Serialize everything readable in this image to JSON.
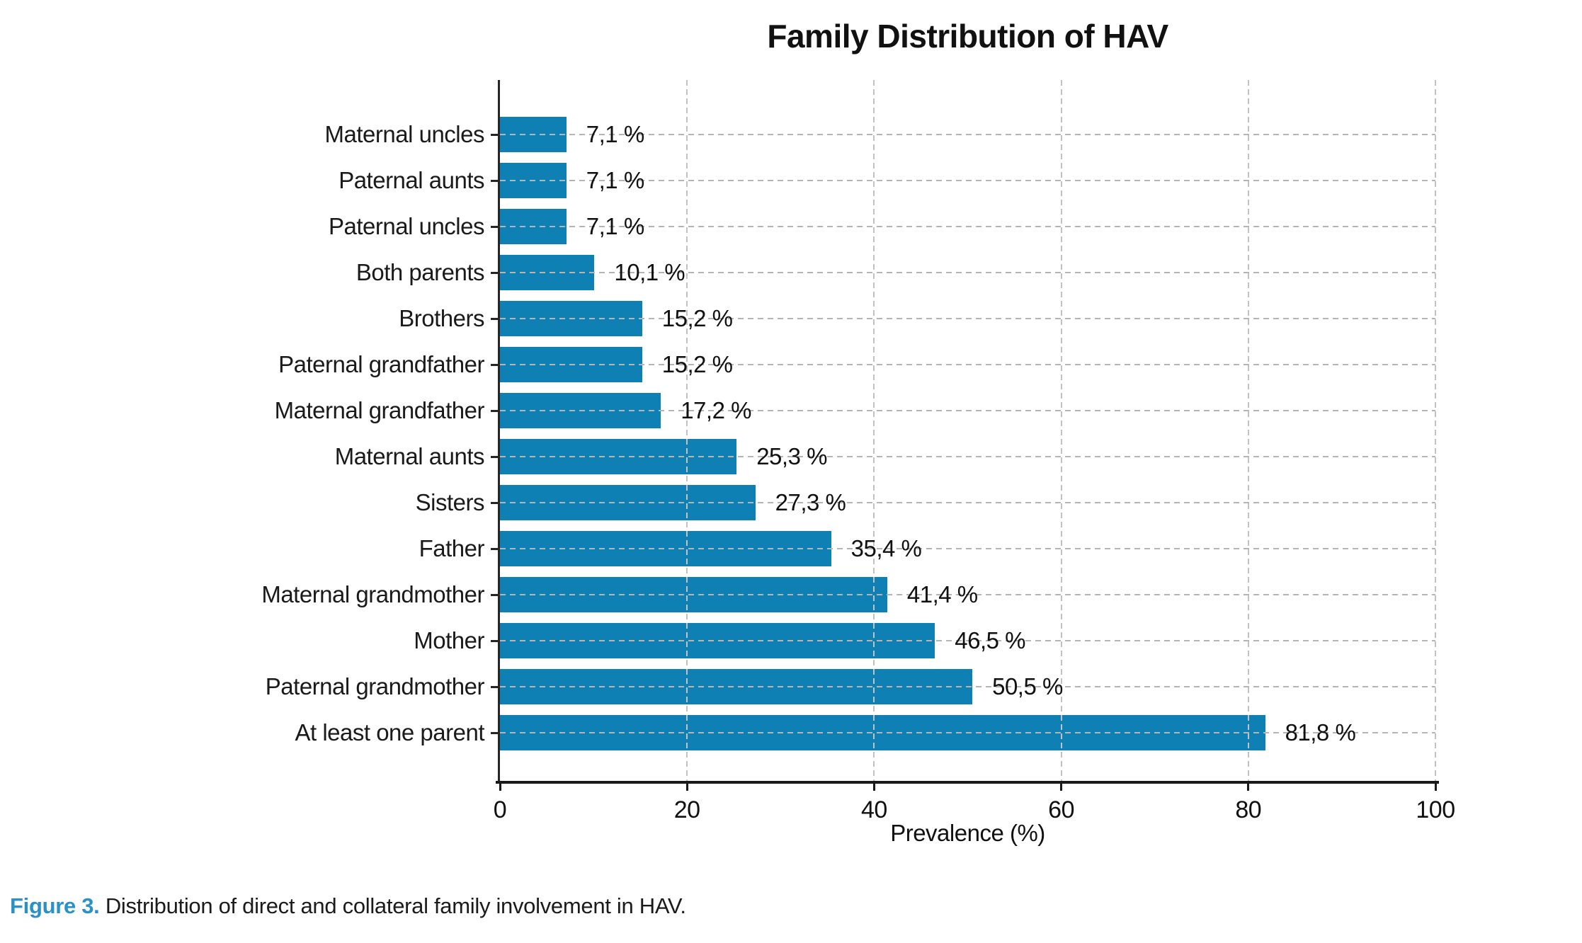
{
  "page": {
    "background": "#ffffff"
  },
  "chart_data": {
    "type": "bar",
    "orientation": "horizontal",
    "title": "Family Distribution of HAV",
    "xlabel": "Prevalence (%)",
    "xlim": [
      0,
      100
    ],
    "xticks": [
      0,
      20,
      40,
      60,
      80,
      100
    ],
    "grid": {
      "style": "dashed",
      "horizontal": true,
      "vertical": true,
      "color": "#b5b5b5"
    },
    "bar_color": "#0f80b4",
    "axis_color": "#1a1a1a",
    "bars": [
      {
        "label": "Maternal uncles",
        "value": 7.1,
        "value_label": "7,1 %"
      },
      {
        "label": "Paternal aunts",
        "value": 7.1,
        "value_label": "7,1 %"
      },
      {
        "label": "Paternal uncles",
        "value": 7.1,
        "value_label": "7,1 %"
      },
      {
        "label": "Both parents",
        "value": 10.1,
        "value_label": "10,1 %"
      },
      {
        "label": "Brothers",
        "value": 15.2,
        "value_label": "15,2 %"
      },
      {
        "label": "Paternal grandfather",
        "value": 15.2,
        "value_label": "15,2 %"
      },
      {
        "label": "Maternal grandfather",
        "value": 17.2,
        "value_label": "17,2 %"
      },
      {
        "label": "Maternal aunts",
        "value": 25.3,
        "value_label": "25,3 %"
      },
      {
        "label": "Sisters",
        "value": 27.3,
        "value_label": "27,3 %"
      },
      {
        "label": "Father",
        "value": 35.4,
        "value_label": "35,4 %"
      },
      {
        "label": "Maternal grandmother",
        "value": 41.4,
        "value_label": "41,4 %"
      },
      {
        "label": "Mother",
        "value": 46.5,
        "value_label": "46,5 %"
      },
      {
        "label": "Paternal grandmother",
        "value": 50.5,
        "value_label": "50,5 %"
      },
      {
        "label": "At least one parent",
        "value": 81.8,
        "value_label": "81,8 %"
      }
    ]
  },
  "caption": {
    "prefix": "Figure 3.",
    "prefix_color": "#2a91c7",
    "text": "Distribution of direct and collateral family involvement in HAV."
  }
}
